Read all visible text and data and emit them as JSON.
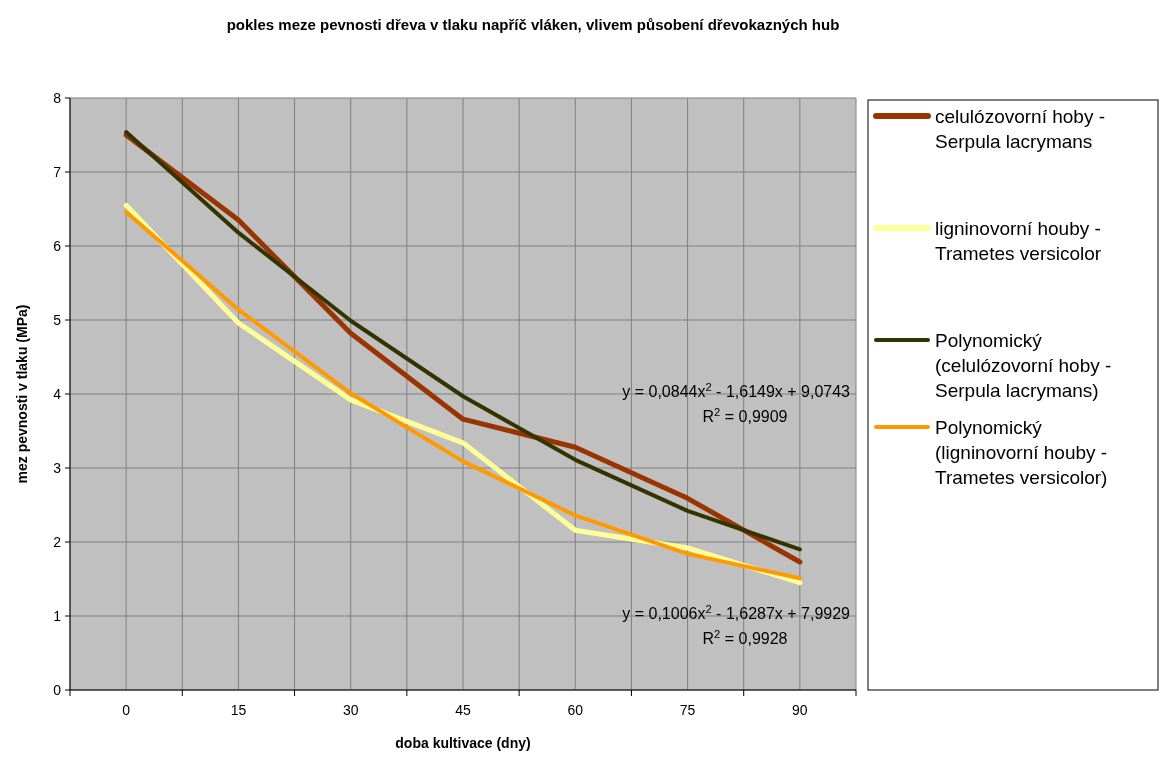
{
  "chart_data": {
    "type": "line",
    "title": "pokles meze pevnosti dřeva v tlaku napříč vláken, vlivem působení dřevokazných hub",
    "xlabel": "doba kultivace (dny)",
    "ylabel": "mez pevnosti v tlaku (MPa)",
    "categories": [
      "0",
      "15",
      "30",
      "45",
      "60",
      "75",
      "90"
    ],
    "ylim": [
      0,
      8
    ],
    "yticks": [
      0,
      1,
      2,
      3,
      4,
      5,
      6,
      7,
      8
    ],
    "grid": true,
    "legend": "right",
    "marker": "none",
    "line_style": "solid",
    "series": [
      {
        "name": "celulózovorní hoby - Serpula lacrymans",
        "color": "#993300",
        "values": [
          7.5,
          6.35,
          4.82,
          3.66,
          3.28,
          2.59,
          1.73
        ]
      },
      {
        "name": "ligninovorní houby - Trametes versicolor",
        "color": "#ffff99",
        "values": [
          6.55,
          4.96,
          3.92,
          3.34,
          2.16,
          1.92,
          1.45
        ]
      },
      {
        "name": "Polynomický (celulózovorní hoby - Serpula lacrymans)",
        "color": "#333300",
        "values": [
          7.54,
          6.18,
          4.99,
          3.97,
          3.11,
          2.42,
          1.9
        ]
      },
      {
        "name": "Polynomický (ligninovorní houby - Trametes versicolor)",
        "color": "#ff9900",
        "values": [
          6.46,
          5.14,
          4.01,
          3.09,
          2.36,
          1.84,
          1.51
        ]
      }
    ],
    "annotations": [
      "y = 0,0844x$^{2}$ - 1,6149x + 9,0743",
      "R$^{2}$ = 0,9909",
      "y = 0,1006x$^{2}$ - 1,6287x + 7,9929",
      "R$^{2}$ = 0,9928"
    ]
  }
}
